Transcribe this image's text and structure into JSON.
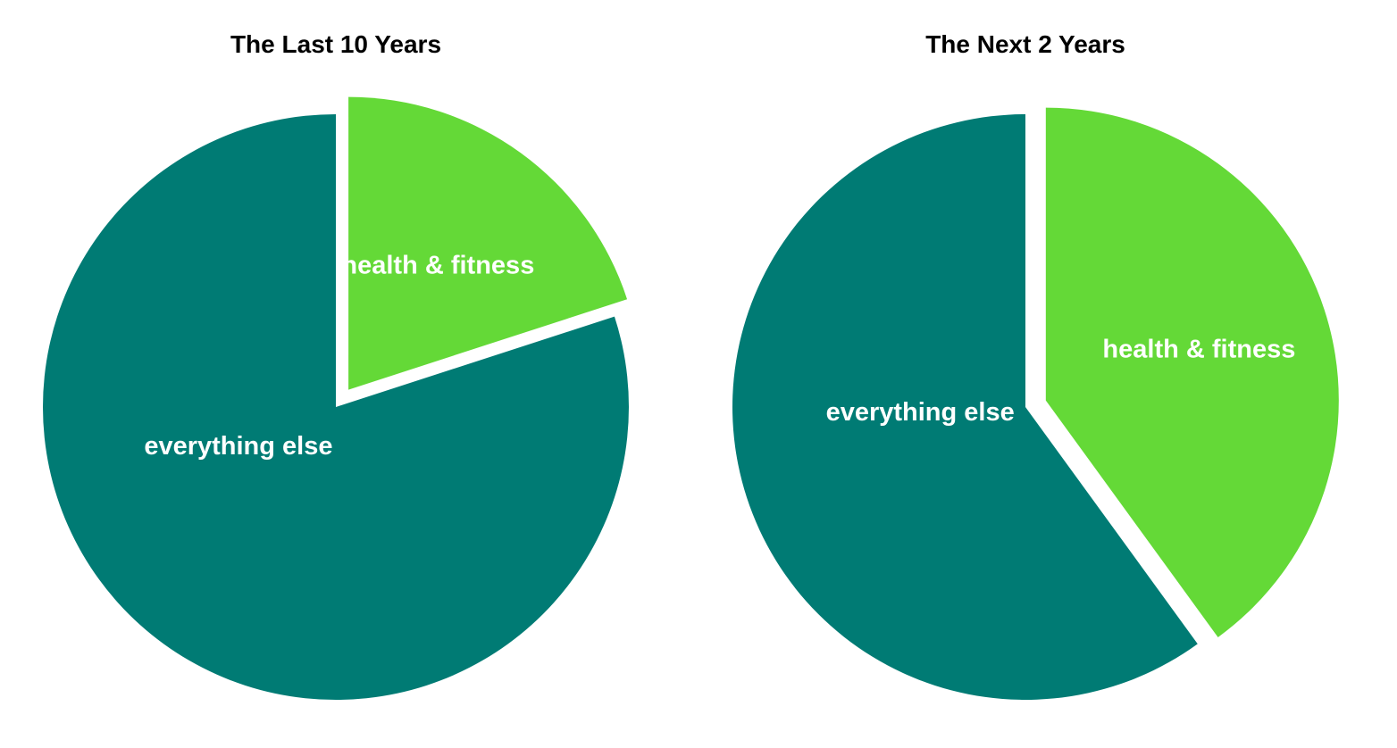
{
  "colors": {
    "health_fitness": "#64d937",
    "everything_else": "#007b74",
    "background": "#ffffff"
  },
  "chart_data": [
    {
      "type": "pie",
      "title": "The Last 10 Years",
      "categories": [
        "health & fitness",
        "everything else"
      ],
      "values": [
        20,
        80
      ],
      "exploded": "health & fitness"
    },
    {
      "type": "pie",
      "title": "The Next 2 Years",
      "categories": [
        "health & fitness",
        "everything else"
      ],
      "values": [
        40,
        60
      ],
      "exploded": "health & fitness"
    }
  ]
}
